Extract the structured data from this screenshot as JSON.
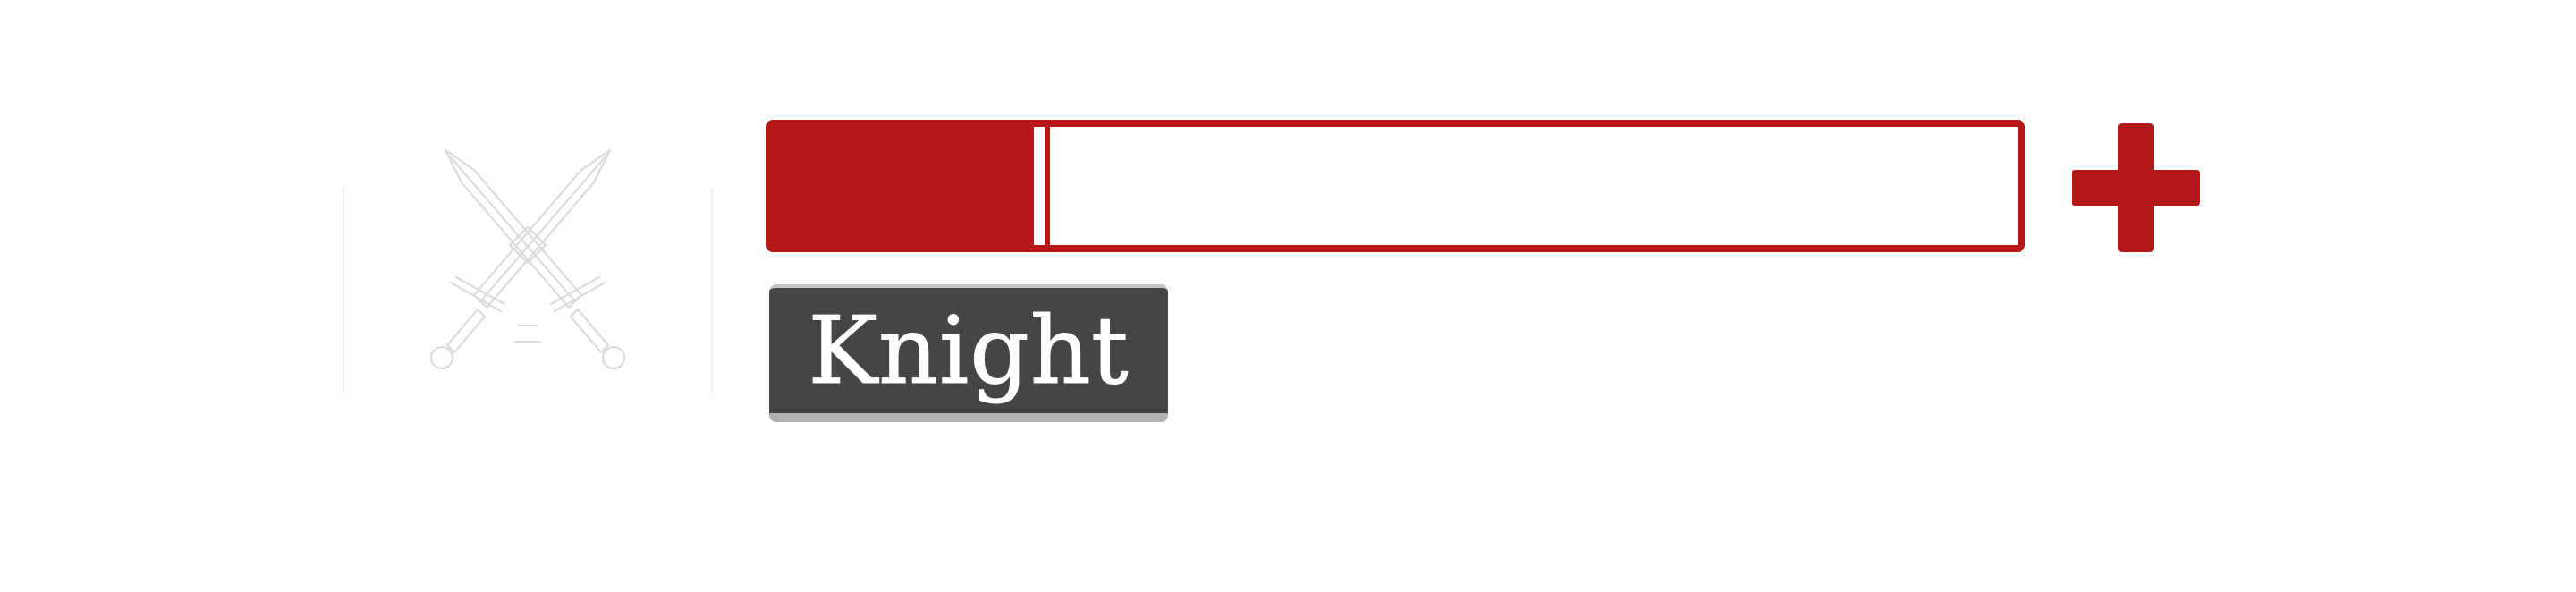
{
  "player": {
    "class_name": "Knight",
    "class_icon": "crossed-swords-icon",
    "health_fraction": 0.21
  },
  "controls": {
    "heal_icon": "plus-icon"
  },
  "colors": {
    "health": "#b3191b",
    "label_background": "#454545",
    "label_text": "#ffffff",
    "icon_outline": "#d9d9d9"
  }
}
